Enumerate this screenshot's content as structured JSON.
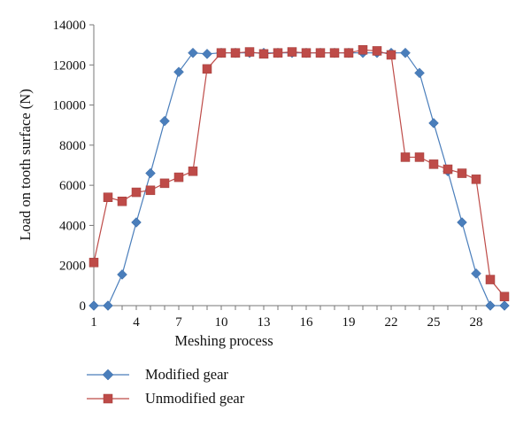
{
  "chart_data": {
    "type": "line",
    "xlabel": "Meshing process",
    "ylabel": "Load on tooth surface (N)",
    "xlim": [
      1,
      30
    ],
    "ylim": [
      0,
      14000
    ],
    "x_ticks": [
      1,
      4,
      7,
      10,
      13,
      16,
      19,
      22,
      25,
      28
    ],
    "y_ticks": [
      0,
      2000,
      4000,
      6000,
      8000,
      10000,
      12000,
      14000
    ],
    "x_tick_labels": [
      "1",
      "4",
      "7",
      "10",
      "13",
      "16",
      "19",
      "22",
      "25",
      "28"
    ],
    "y_tick_labels": [
      "0",
      "2000",
      "4000",
      "6000",
      "8000",
      "10000",
      "12000",
      "14000"
    ],
    "grid": false,
    "legend_position": "bottom",
    "x": [
      1,
      2,
      3,
      4,
      5,
      6,
      7,
      8,
      9,
      10,
      11,
      12,
      13,
      14,
      15,
      16,
      17,
      18,
      19,
      20,
      21,
      22,
      23,
      24,
      25,
      26,
      27,
      28,
      29,
      30
    ],
    "series": [
      {
        "name": "Modified gear",
        "color": "#4a7ebb",
        "marker": "diamond",
        "values": [
          0,
          0,
          1550,
          4150,
          6600,
          9200,
          11650,
          12600,
          12550,
          12600,
          12600,
          12600,
          12600,
          12600,
          12600,
          12600,
          12600,
          12600,
          12600,
          12600,
          12600,
          12600,
          12600,
          11600,
          9100,
          6700,
          4150,
          1600,
          0,
          0
        ]
      },
      {
        "name": "Unmodified gear",
        "color": "#be4b48",
        "marker": "square",
        "values": [
          2150,
          5400,
          5200,
          5650,
          5750,
          6100,
          6400,
          6700,
          11800,
          12600,
          12600,
          12650,
          12550,
          12600,
          12650,
          12600,
          12600,
          12600,
          12600,
          12750,
          12700,
          12500,
          7400,
          7400,
          7050,
          6800,
          6600,
          6300,
          1300,
          450
        ]
      }
    ]
  }
}
